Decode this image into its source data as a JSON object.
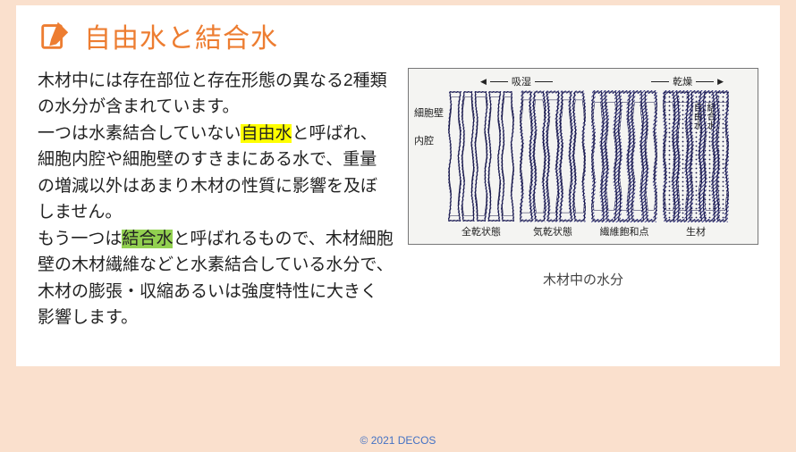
{
  "title": "自由水と結合水",
  "icon": "edit-note-icon",
  "body": {
    "p1a": "木材中には存在部位と存在形態の異なる2種類の水分が含まれています。",
    "p2a": "一つは水素結合していない",
    "p2hl": "自由水",
    "p2b": "と呼ばれ、細胞内腔や細胞壁のすきまにある水で、重量の増減以外はあまり木材の性質に影響を及ぼしません。",
    "p3a": "もう一つは",
    "p3hl": "結合水",
    "p3b": "と呼ばれるもので、木材細胞壁の木材繊維などと水素結合している水分で、木材の膨張・収縮あるいは強度特性に大きく影響します。"
  },
  "diagram": {
    "arrow_left": "吸湿",
    "arrow_right": "乾燥",
    "side_label_1": "細胞壁",
    "side_label_2": "内腔",
    "right_label_1": "自由水",
    "right_label_2": "結合水",
    "panels": [
      {
        "caption": "全乾状態",
        "fill": 0.0,
        "dots": false
      },
      {
        "caption": "気乾状態",
        "fill": 0.18,
        "dots": false
      },
      {
        "caption": "繊維飽和点",
        "fill": 0.35,
        "dots": false
      },
      {
        "caption": "生材",
        "fill": 0.35,
        "dots": true
      }
    ],
    "caption": "木材中の水分",
    "colors": {
      "stroke": "#1a1a4a",
      "hatch": "#2a2a7a",
      "bg": "#f4f4f2",
      "dots": "#1a1a4a"
    }
  },
  "footer": "© 2021 DECOS"
}
